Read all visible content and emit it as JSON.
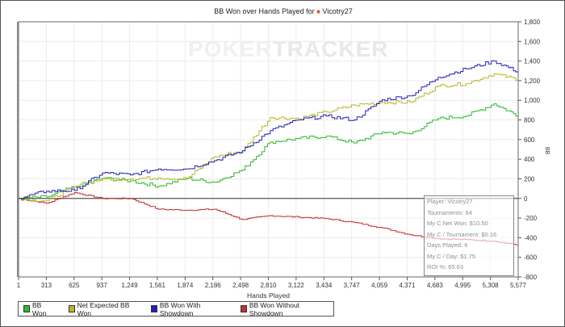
{
  "chart_data": {
    "type": "line",
    "title": "BB Won over Hands Played for",
    "player": "Vicotry27",
    "xlabel": "Hands Played",
    "ylabel": "BB",
    "watermark": "POKERTRACKER",
    "xlim": [
      1,
      5577
    ],
    "ylim": [
      -800,
      1800
    ],
    "x_ticks": [
      "1",
      "313",
      "625",
      "937",
      "1,249",
      "1,561",
      "1,874",
      "2,186",
      "2,498",
      "2,810",
      "3,122",
      "3,434",
      "3,747",
      "4,059",
      "4,371",
      "4,683",
      "4,995",
      "5,308",
      "5,577"
    ],
    "y_ticks": [
      "1,800",
      "1,600",
      "1,400",
      "1,200",
      "1,000",
      "800",
      "600",
      "400",
      "200",
      "0",
      "-200",
      "-400",
      "-600",
      "-800"
    ],
    "grid": true,
    "legend_position": "bottom-left",
    "x": [
      1,
      313,
      625,
      937,
      1249,
      1561,
      1874,
      2186,
      2498,
      2810,
      3122,
      3434,
      3747,
      4059,
      4371,
      4683,
      4995,
      5308,
      5577
    ],
    "series": [
      {
        "name": "BB Won",
        "color": "#2db82d",
        "values": [
          0,
          15,
          120,
          205,
          180,
          125,
          205,
          165,
          290,
          575,
          610,
          635,
          565,
          675,
          660,
          815,
          840,
          965,
          840
        ]
      },
      {
        "name": "Net Expected BB Won",
        "color": "#b8b82d",
        "values": [
          0,
          -25,
          115,
          200,
          200,
          210,
          200,
          425,
          485,
          825,
          815,
          880,
          950,
          980,
          980,
          1145,
          1170,
          1270,
          1210
        ]
      },
      {
        "name": "BB Won With Showdown",
        "color": "#2020b8",
        "values": [
          0,
          75,
          80,
          260,
          240,
          300,
          300,
          385,
          485,
          690,
          800,
          840,
          800,
          1005,
          1045,
          1235,
          1320,
          1400,
          1290
        ]
      },
      {
        "name": "BB Won Without Showdown",
        "color": "#c03030",
        "values": [
          0,
          -50,
          60,
          0,
          0,
          -110,
          -120,
          -110,
          -215,
          -175,
          -190,
          -205,
          -245,
          -300,
          -370,
          -410,
          -420,
          -435,
          -475
        ]
      }
    ]
  },
  "stats": [
    "Player: Vicotry27",
    "Tournaments: 64",
    "My C Net Won: $10.50",
    "My C / Tournament: $0.16",
    "Days Played: 6",
    "My C / Day: $1.75",
    "ROI %: 65.63"
  ]
}
